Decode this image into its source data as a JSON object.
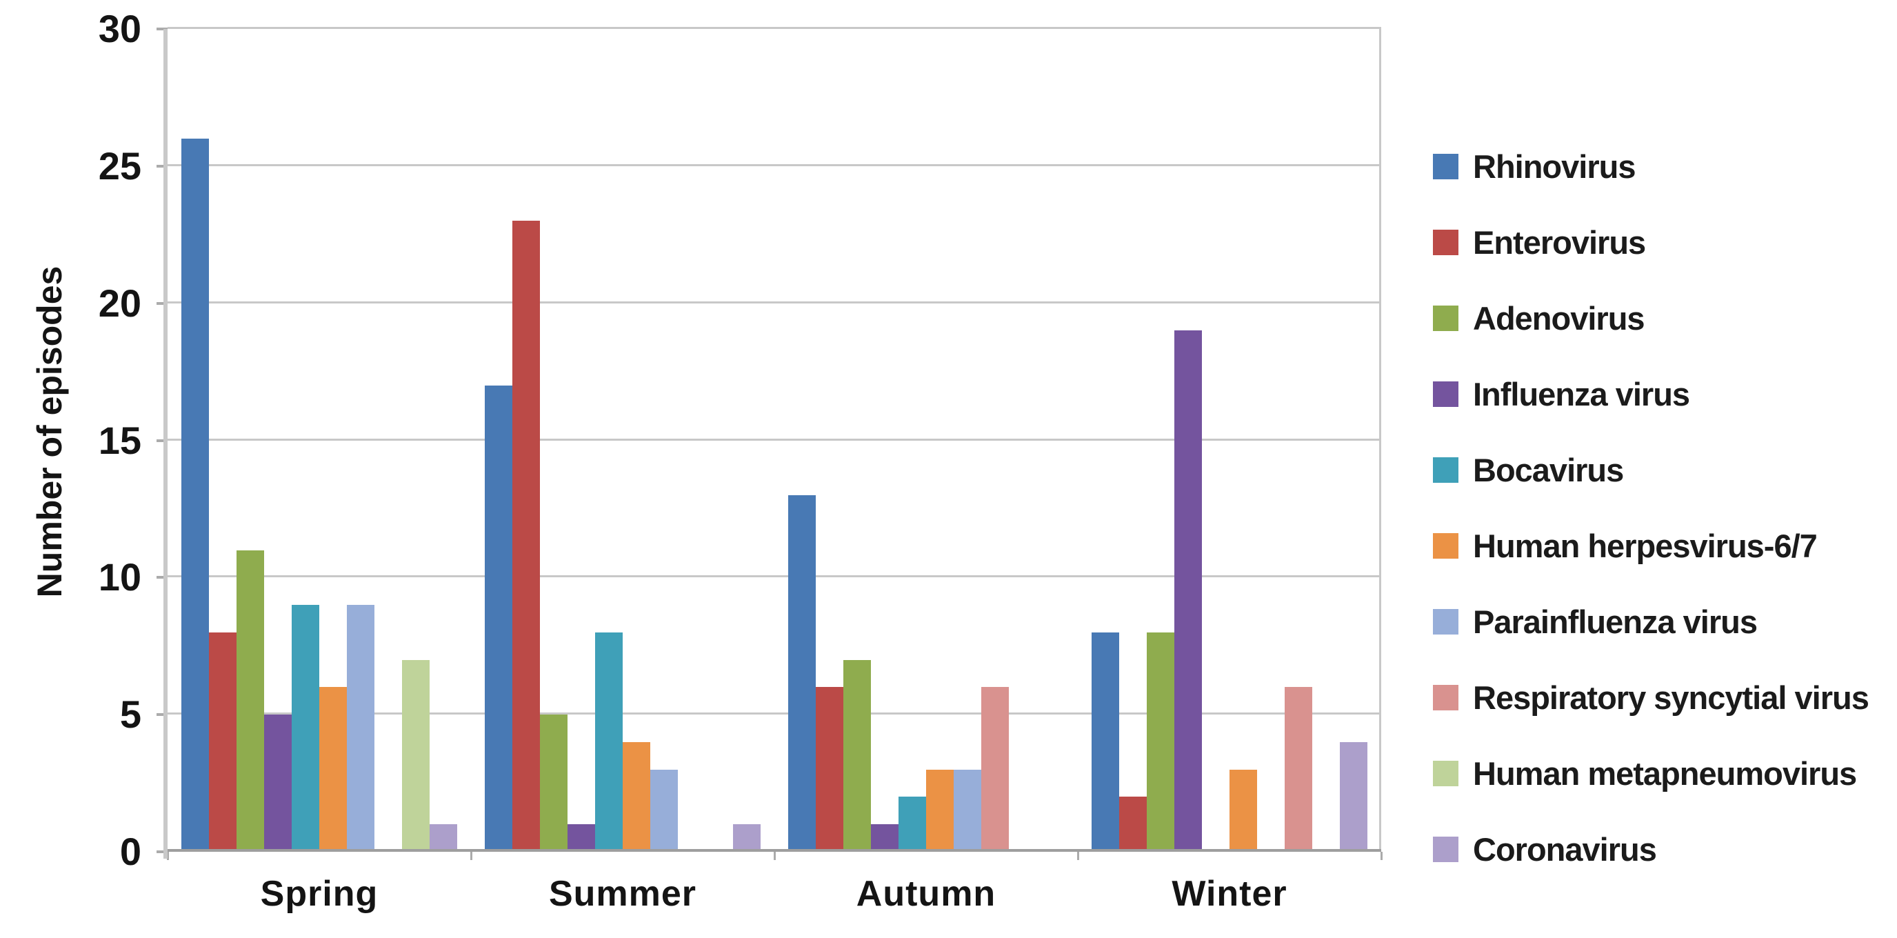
{
  "chart_data": {
    "type": "bar",
    "title": "",
    "xlabel": "",
    "ylabel": "Number of episodes",
    "categories": [
      "Spring",
      "Summer",
      "Autumn",
      "Winter"
    ],
    "series": [
      {
        "name": "Rhinovirus",
        "color": "#4879B4",
        "values": [
          26,
          17,
          13,
          8
        ]
      },
      {
        "name": "Enterovirus",
        "color": "#BB4A47",
        "values": [
          8,
          23,
          6,
          2
        ]
      },
      {
        "name": "Adenovirus",
        "color": "#8FAC4E",
        "values": [
          11,
          5,
          7,
          8
        ]
      },
      {
        "name": "Influenza virus",
        "color": "#74549E",
        "values": [
          5,
          1,
          1,
          19
        ]
      },
      {
        "name": "Bocavirus",
        "color": "#3FA0B8",
        "values": [
          9,
          8,
          2,
          0
        ]
      },
      {
        "name": "Human herpesvirus-6/7",
        "color": "#EB9245",
        "values": [
          6,
          4,
          3,
          3
        ]
      },
      {
        "name": "Parainfluenza virus",
        "color": "#97AED9",
        "values": [
          9,
          3,
          3,
          0
        ]
      },
      {
        "name": "Respiratory syncytial virus",
        "color": "#D9928F",
        "values": [
          0,
          0,
          6,
          6
        ]
      },
      {
        "name": "Human metapneumovirus",
        "color": "#BFD39A",
        "values": [
          7,
          0,
          0,
          0
        ]
      },
      {
        "name": "Coronavirus",
        "color": "#AC9FCB",
        "values": [
          1,
          1,
          0,
          4
        ]
      }
    ],
    "y_ticks": [
      0,
      5,
      10,
      15,
      20,
      25,
      30
    ],
    "ylim": [
      0,
      30
    ],
    "grid": true,
    "legend_position": "right"
  },
  "colors": {
    "gridline": "#C8C8C8",
    "baseline": "#9E9E9E",
    "axis_line": "#C9C9C9",
    "tick_mark": "#ABABAB",
    "text": "#141414",
    "background": "#FFFFFF"
  }
}
